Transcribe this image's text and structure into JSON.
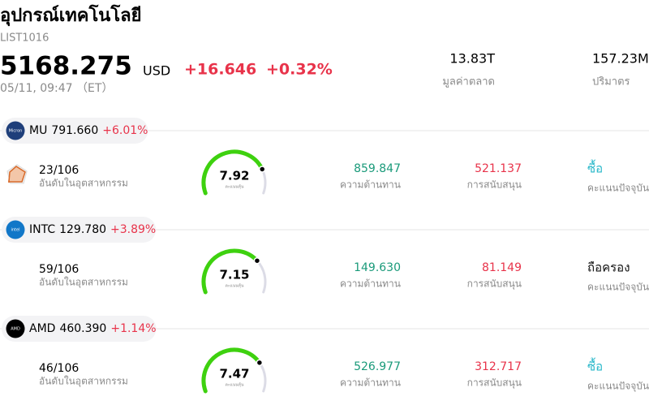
{
  "header": {
    "title": "อุปกรณ์เทคโนโลยี",
    "code": "LIST1016",
    "price": "5168.275",
    "currency": "USD",
    "change": "+16.646",
    "change_pct": "+0.32%",
    "time": "05/11, 09:47 （ET）",
    "stats": [
      {
        "value": "13.83T",
        "label": "มูลค่าตลาด"
      },
      {
        "value": "157.23M",
        "label": "ปริมาตร"
      }
    ]
  },
  "stocks": [
    {
      "logo_text": "Micron",
      "logo_color": "#1f3f7a",
      "ticker": "MU",
      "price": "791.660",
      "change": "+6.01%",
      "rank": "23/106",
      "rank_label": "อันดับในอุตสาหกรรม",
      "score": 7.92,
      "score_label": "คะแนนหุ้น",
      "resistance": "859.847",
      "resistance_label": "ความต้านทาน",
      "support": "521.137",
      "support_label": "การสนับสนุน",
      "rating": "ซื้อ",
      "rating_color": "#27b7c9",
      "rating_label": "คะแนนปัจจุบัน"
    },
    {
      "logo_text": "intel",
      "logo_color": "#1177c8",
      "ticker": "INTC",
      "price": "129.780",
      "change": "+3.89%",
      "rank": "59/106",
      "rank_label": "อันดับในอุตสาหกรรม",
      "score": 7.15,
      "score_label": "คะแนนหุ้น",
      "resistance": "149.630",
      "resistance_label": "ความต้านทาน",
      "support": "81.149",
      "support_label": "การสนับสนุน",
      "rating": "ถือครอง",
      "rating_color": "#111111",
      "rating_label": "คะแนนปัจจุบัน"
    },
    {
      "logo_text": "AMD",
      "logo_color": "#000000",
      "ticker": "AMD",
      "price": "460.390",
      "change": "+1.14%",
      "rank": "46/106",
      "rank_label": "อันดับในอุตสาหกรรม",
      "score": 7.47,
      "score_label": "คะแนนหุ้น",
      "resistance": "526.977",
      "resistance_label": "ความต้านทาน",
      "support": "312.717",
      "support_label": "การสนับสนุน",
      "rating": "ซื้อ",
      "rating_color": "#27b7c9",
      "rating_label": "คะแนนปัจจุบัน"
    }
  ]
}
